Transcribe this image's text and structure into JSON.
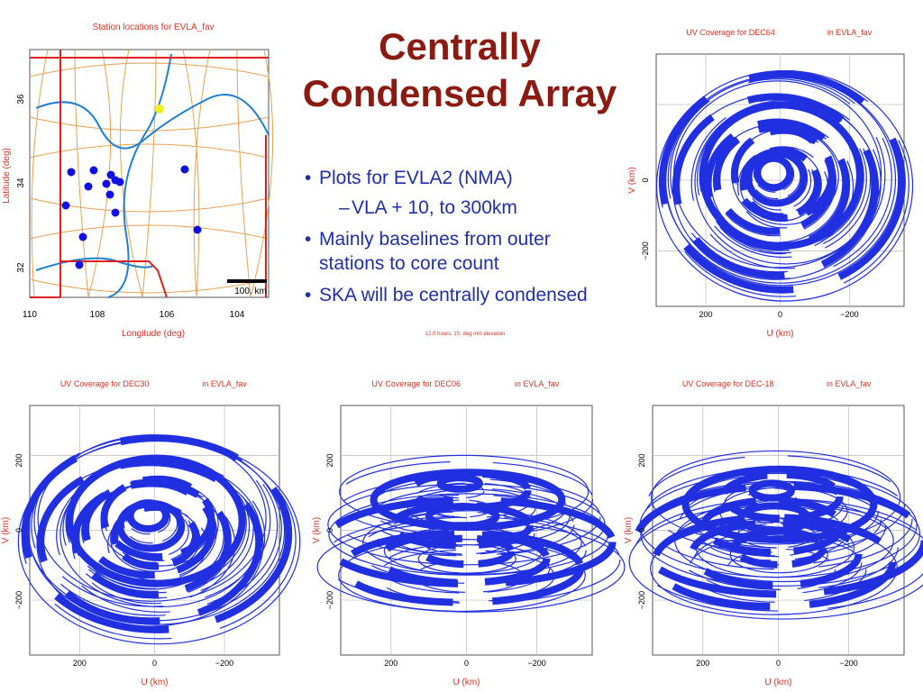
{
  "title": "Centrally Condensed Array",
  "bullets": [
    {
      "text": "Plots for EVLA2 (NMA)",
      "sub": [
        "VLA  + 10,  to 300km"
      ]
    },
    {
      "text": "Mainly baselines from outer stations to core count"
    },
    {
      "text": "SKA will be centrally condensed"
    }
  ],
  "map": {
    "title": "Station locations for EVLA_fav",
    "xlabel": "Longitude (deg)",
    "ylabel": "Latitude (deg)",
    "xticks": [
      "110",
      "108",
      "106",
      "104"
    ],
    "yticks": [
      "36",
      "34",
      "32"
    ],
    "scale": "100. km"
  },
  "note": "12.0 hours, 15. deg min elevation.",
  "uv_plots": [
    {
      "title": "UV Coverage for DEC64",
      "config": "in EVLA_fav",
      "xlabel": "U (km)",
      "ylabel": "V (km)",
      "xticks": [
        "200",
        "0",
        "−200"
      ],
      "yticks": [
        "0",
        "−200"
      ]
    },
    {
      "title": "UV Coverage for DEC30",
      "config": "in EVLA_fav",
      "xlabel": "U (km)",
      "ylabel": "V (km)",
      "xticks": [
        "200",
        "0",
        "−200"
      ],
      "yticks": [
        "200",
        "0",
        "−200"
      ]
    },
    {
      "title": "UV Coverage for DEC06",
      "config": "in EVLA_fav",
      "xlabel": "U (km)",
      "ylabel": "V (km)",
      "xticks": [
        "200",
        "0",
        "−200"
      ],
      "yticks": [
        "200",
        "0",
        "−200"
      ]
    },
    {
      "title": "UV Coverage for DEC-18",
      "config": "in EVLA_fav",
      "xlabel": "U (km)",
      "ylabel": "V (km)",
      "xticks": [
        "200",
        "0",
        "−200"
      ],
      "yticks": [
        "200",
        "0",
        "−200"
      ]
    }
  ]
}
